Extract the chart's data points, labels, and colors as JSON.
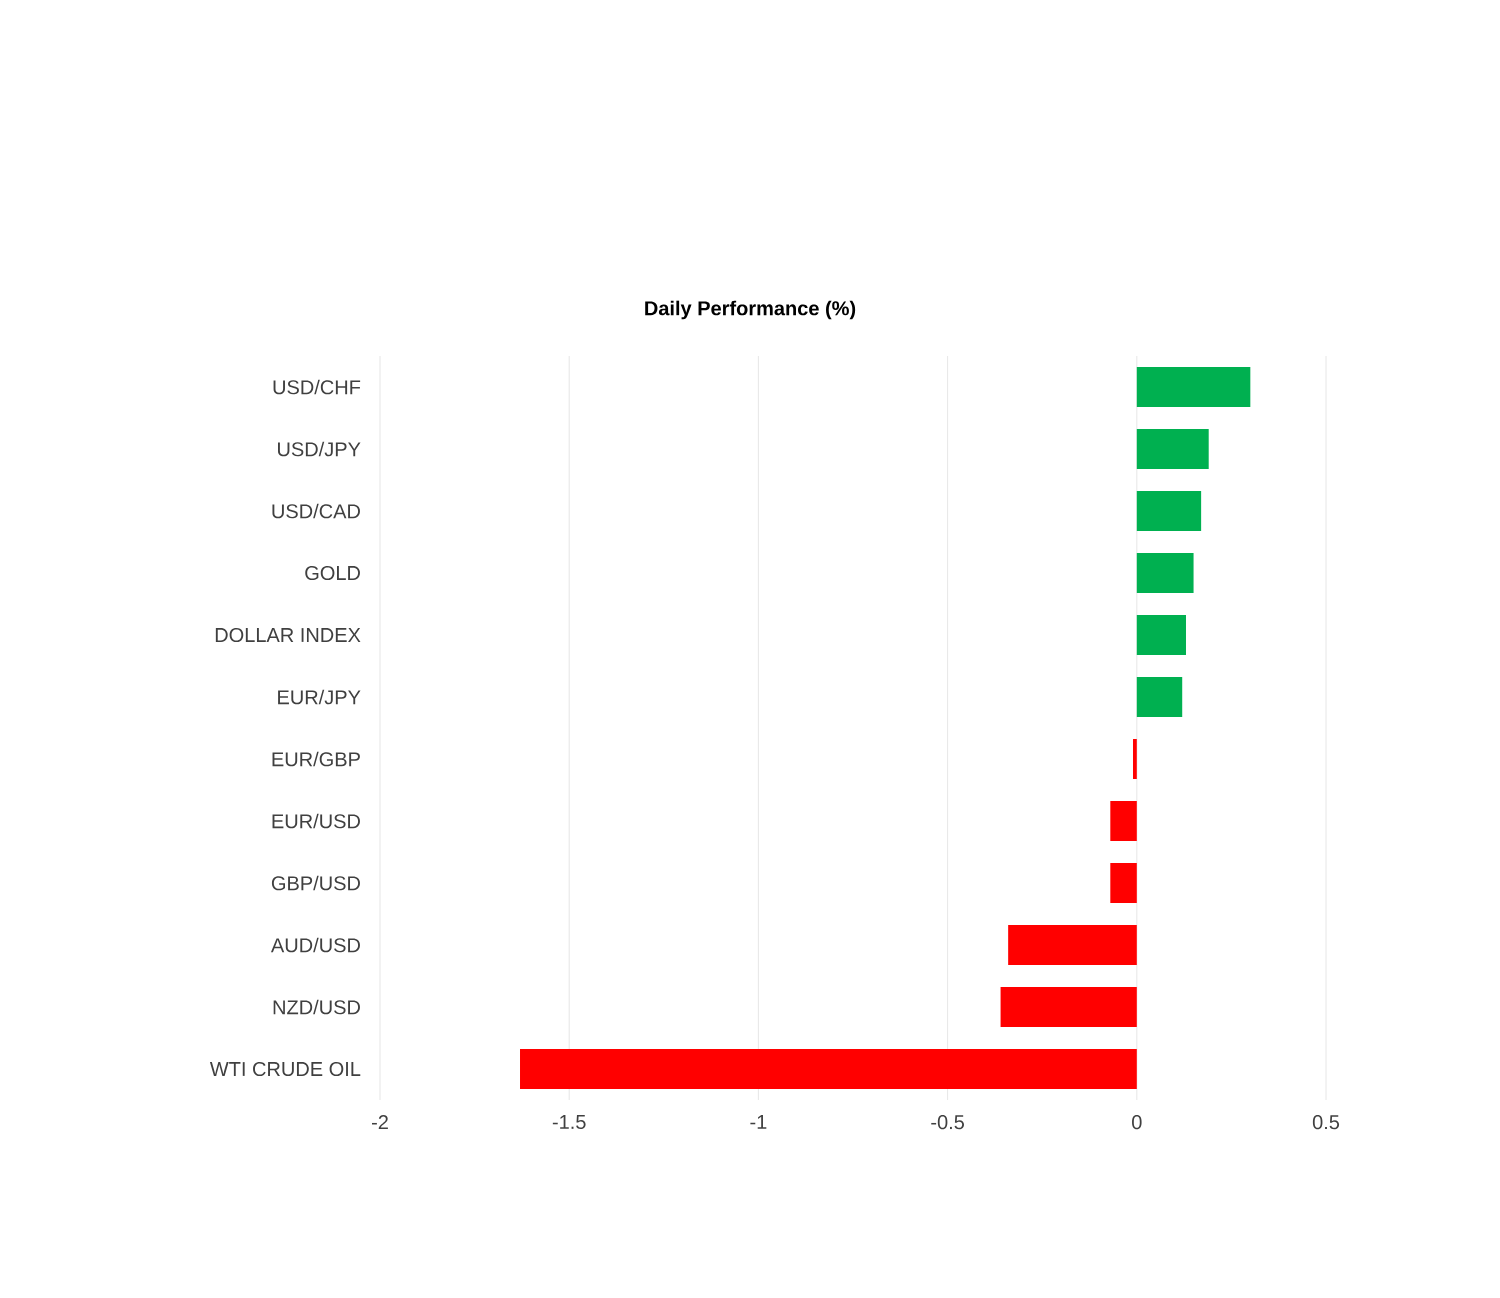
{
  "chart_data": {
    "type": "bar",
    "orientation": "horizontal",
    "title": "Daily Performance (%)",
    "categories": [
      "USD/CHF",
      "USD/JPY",
      "USD/CAD",
      "GOLD",
      "DOLLAR INDEX",
      "EUR/JPY",
      "EUR/GBP",
      "EUR/USD",
      "GBP/USD",
      "AUD/USD",
      "NZD/USD",
      "WTI CRUDE OIL"
    ],
    "values": [
      0.3,
      0.19,
      0.17,
      0.15,
      0.13,
      0.12,
      -0.01,
      -0.07,
      -0.07,
      -0.34,
      -0.36,
      -1.63
    ],
    "colors": [
      "#00b050",
      "#00b050",
      "#00b050",
      "#00b050",
      "#00b050",
      "#00b050",
      "#ff0000",
      "#ff0000",
      "#ff0000",
      "#ff0000",
      "#ff0000",
      "#ff0000"
    ],
    "xlim": [
      -2,
      0.5
    ],
    "xticks": [
      -2,
      -1.5,
      -1,
      -0.5,
      0,
      0.5
    ],
    "grid": "x"
  }
}
